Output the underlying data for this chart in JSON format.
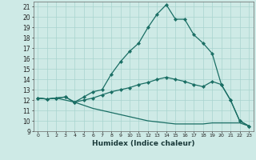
{
  "title": "",
  "xlabel": "Humidex (Indice chaleur)",
  "ylabel": "",
  "bg_color": "#ceeae6",
  "line_color": "#1a6e64",
  "grid_color": "#a8d4ce",
  "xlim": [
    -0.5,
    23.5
  ],
  "ylim": [
    9,
    21.5
  ],
  "yticks": [
    9,
    10,
    11,
    12,
    13,
    14,
    15,
    16,
    17,
    18,
    19,
    20,
    21
  ],
  "xticks": [
    0,
    1,
    2,
    3,
    4,
    5,
    6,
    7,
    8,
    9,
    10,
    11,
    12,
    13,
    14,
    15,
    16,
    17,
    18,
    19,
    20,
    21,
    22,
    23
  ],
  "line1_x": [
    0,
    1,
    2,
    3,
    4,
    5,
    6,
    7,
    8,
    9,
    10,
    11,
    12,
    13,
    14,
    15,
    16,
    17,
    18,
    19,
    20,
    21,
    22,
    23
  ],
  "line1_y": [
    12.2,
    12.1,
    12.2,
    12.3,
    11.8,
    12.3,
    12.8,
    13.0,
    14.5,
    15.7,
    16.7,
    17.5,
    19.0,
    20.3,
    21.2,
    19.8,
    19.8,
    18.3,
    17.5,
    16.5,
    13.5,
    12.0,
    10.0,
    9.5
  ],
  "line2_x": [
    0,
    1,
    2,
    3,
    4,
    5,
    6,
    7,
    8,
    9,
    10,
    11,
    12,
    13,
    14,
    15,
    16,
    17,
    18,
    19,
    20,
    21,
    22,
    23
  ],
  "line2_y": [
    12.2,
    12.1,
    12.2,
    12.3,
    11.8,
    12.0,
    12.2,
    12.5,
    12.8,
    13.0,
    13.2,
    13.5,
    13.7,
    14.0,
    14.2,
    14.0,
    13.8,
    13.5,
    13.3,
    13.8,
    13.5,
    12.0,
    10.0,
    9.5
  ],
  "line3_x": [
    0,
    1,
    2,
    3,
    4,
    5,
    6,
    7,
    8,
    9,
    10,
    11,
    12,
    13,
    14,
    15,
    16,
    17,
    18,
    19,
    20,
    21,
    22,
    23
  ],
  "line3_y": [
    12.2,
    12.1,
    12.2,
    12.0,
    11.8,
    11.5,
    11.2,
    11.0,
    10.8,
    10.6,
    10.4,
    10.2,
    10.0,
    9.9,
    9.8,
    9.7,
    9.7,
    9.7,
    9.7,
    9.8,
    9.8,
    9.8,
    9.8,
    9.5
  ]
}
